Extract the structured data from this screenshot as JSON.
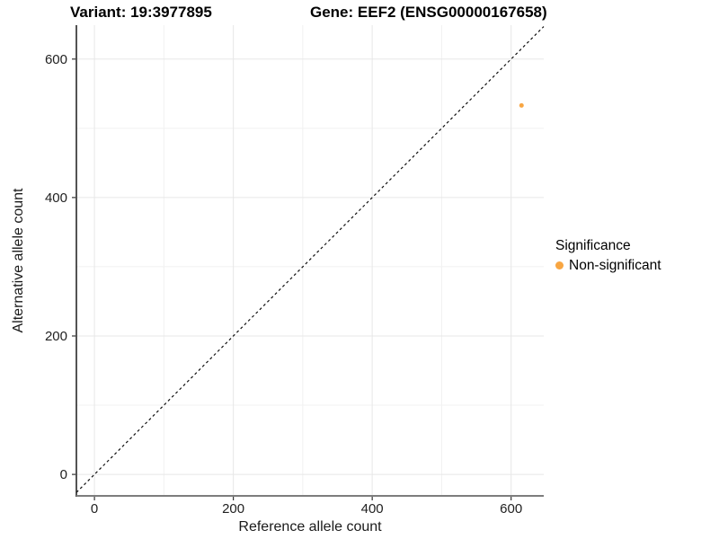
{
  "chart_data": {
    "type": "scatter",
    "title_left": "Variant: 19:3977895",
    "title_right": "Gene: EEF2 (ENSG00000167658)",
    "xlabel": "Reference allele count",
    "ylabel": "Alternative allele count",
    "x_ticks": [
      0,
      200,
      400,
      600
    ],
    "y_ticks": [
      0,
      200,
      400,
      600
    ],
    "x_minor_gridlines": [
      100,
      300,
      500
    ],
    "y_minor_gridlines": [
      100,
      300,
      500
    ],
    "xlim": [
      -26,
      647
    ],
    "ylim": [
      -31,
      649
    ],
    "grid": "on",
    "points": [
      {
        "x": 615,
        "y": 533,
        "series": "Non-significant"
      }
    ],
    "reference_line": {
      "style": "dashed",
      "slope": 1,
      "intercept": 0,
      "description": "y = x identity line"
    },
    "legend": {
      "title": "Significance",
      "position": "right",
      "entries": [
        {
          "label": "Non-significant",
          "color": "#F8A642",
          "marker": "circle"
        }
      ]
    },
    "colors": {
      "point": "#F8A642",
      "grid_major": "#E7E7E7",
      "grid_minor": "#F1F1F1",
      "axis_line_y": "#1A1A1A",
      "axis_line_x": "#7D7D7D",
      "tick": "#333333",
      "tick_label": "#212121",
      "reference_line": "#111111",
      "background": "#FFFFFF"
    }
  }
}
